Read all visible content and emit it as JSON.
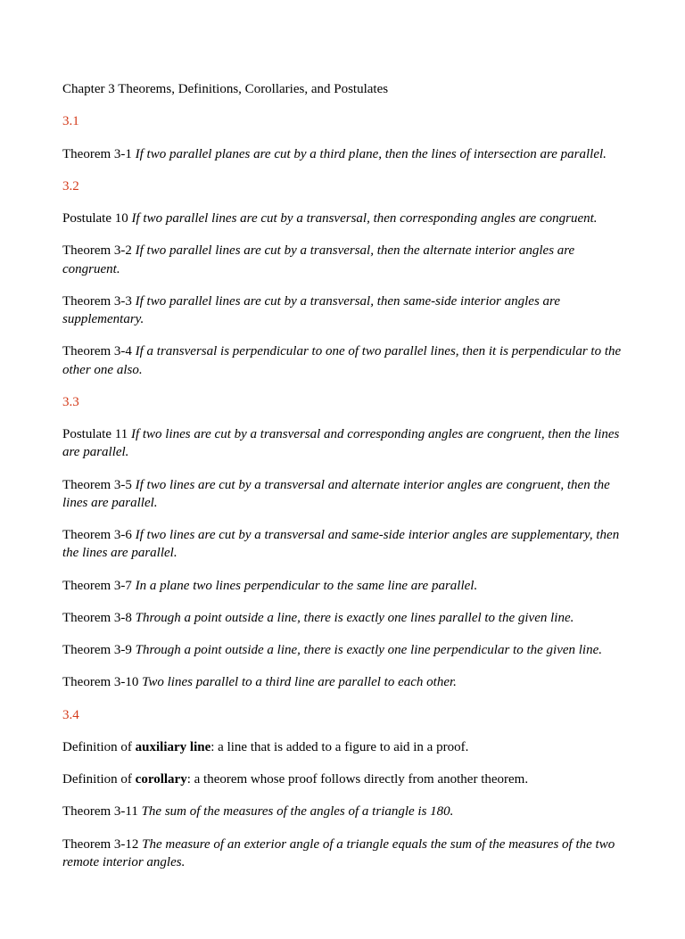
{
  "colors": {
    "text": "#000000",
    "section": "#d43a1a",
    "background": "#ffffff"
  },
  "typography": {
    "font_family": "Times New Roman",
    "base_fontsize_pt": 11,
    "line_height": 1.35
  },
  "title": "Chapter 3 Theorems, Definitions, Corollaries, and Postulates",
  "sections": {
    "s31": "3.1",
    "s32": "3.2",
    "s33": "3.3",
    "s34": "3.4"
  },
  "items": {
    "t31_label": "Theorem 3-1 ",
    "t31_stmt": "If two parallel planes are cut by a third plane, then the lines of intersection are parallel.",
    "p10_label": "Postulate 10 ",
    "p10_stmt": "If two parallel lines are cut by a transversal, then corresponding angles are congruent.",
    "t32_label": "Theorem 3-2 ",
    "t32_stmt": "If two parallel lines are cut by a transversal, then the alternate interior angles are congruent.",
    "t33_label": "Theorem 3-3 ",
    "t33_stmt": "If two parallel lines are cut by a transversal, then same-side interior angles are supplementary.",
    "t34_label": "Theorem 3-4 ",
    "t34_stmt": "If a transversal is perpendicular to one of two parallel lines, then it is perpendicular to the other one also.",
    "p11_label": "Postulate 11 ",
    "p11_stmt": "If two lines are cut by a transversal and corresponding angles are congruent, then the lines are parallel.",
    "t35_label": "Theorem 3-5 ",
    "t35_stmt": "If two lines are cut by a transversal and alternate interior angles are congruent, then the lines are parallel.",
    "t36_label": "Theorem 3-6 ",
    "t36_stmt": "If two lines are cut by a transversal and same-side interior angles are supplementary, then the lines are parallel.",
    "t37_label": "Theorem 3-7 ",
    "t37_stmt": "In a plane two lines perpendicular to the same line are parallel.",
    "t38_label": "Theorem 3-8 ",
    "t38_stmt": "Through a point outside a line, there is exactly one lines parallel to the given line.",
    "t39_label": "Theorem 3-9 ",
    "t39_stmt": "Through a point outside a line, there is exactly one line perpendicular to the given line.",
    "t310_label": "Theorem 3-10 ",
    "t310_stmt": "Two lines parallel to a third line are parallel to each other.",
    "def_aux_pre": "Definition of ",
    "def_aux_term": "auxiliary line",
    "def_aux_post": ": a line that is added to a figure to aid in a proof.",
    "def_cor_pre": "Definition of ",
    "def_cor_term": "corollary",
    "def_cor_post": ": a theorem whose proof follows directly from another theorem.",
    "t311_label": "Theorem 3-11 ",
    "t311_stmt": "The sum of the measures of the angles of a triangle is 180.",
    "t312_label": "Theorem 3-12 ",
    "t312_stmt": "The measure of an exterior angle of a triangle equals the sum of the measures of the two remote interior angles."
  }
}
